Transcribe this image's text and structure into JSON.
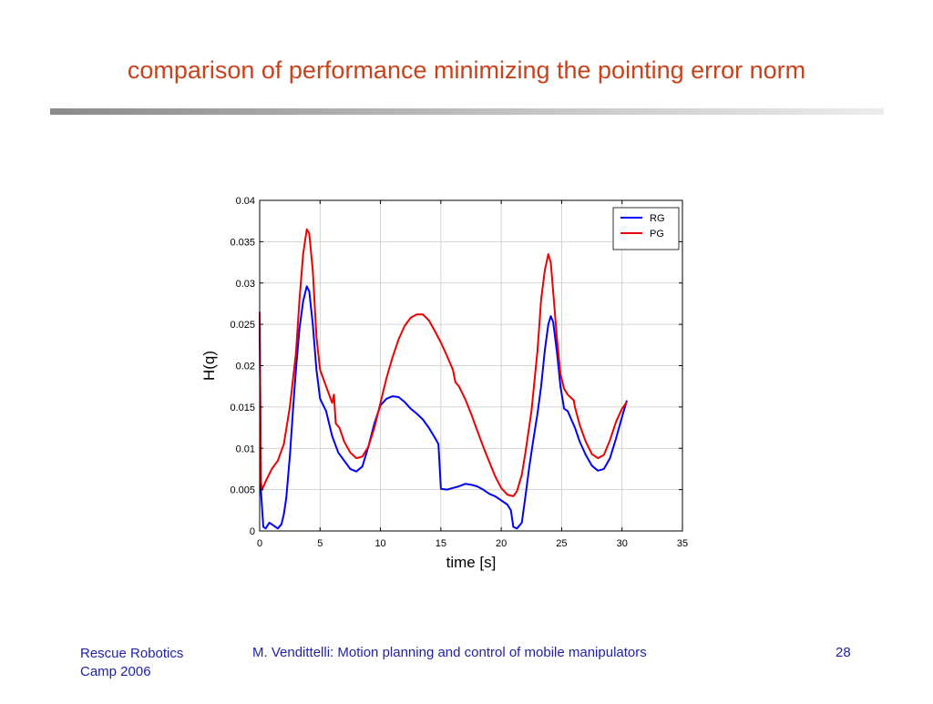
{
  "slide": {
    "title": "comparison of performance minimizing the pointing error norm",
    "footer_left": "Rescue Robotics Camp 2006",
    "footer_center": "M. Vendittelli: Motion planning and control of mobile manipulators",
    "page_number": "28",
    "title_color": "#c8421c",
    "footer_color": "#1f1fa8"
  },
  "chart_data": {
    "type": "line",
    "title": "",
    "xlabel": "time [s]",
    "ylabel": "H(q)",
    "xlim": [
      0,
      35
    ],
    "ylim": [
      0,
      0.04
    ],
    "xticks": [
      0,
      5,
      10,
      15,
      20,
      25,
      30,
      35
    ],
    "xtick_labels": [
      "0",
      "5",
      "10",
      "15",
      "20",
      "25",
      "30",
      "35"
    ],
    "yticks": [
      0,
      0.005,
      0.01,
      0.015,
      0.02,
      0.025,
      0.03,
      0.035,
      0.04
    ],
    "ytick_labels": [
      "0",
      "0.005",
      "0.01",
      "0.015",
      "0.02",
      "0.025",
      "0.03",
      "0.035",
      "0.04"
    ],
    "grid": true,
    "legend_position": "top-right",
    "series": [
      {
        "name": "RG",
        "color": "#0000ff",
        "x": [
          0,
          0.1,
          0.3,
          0.5,
          0.8,
          1.0,
          1.5,
          1.8,
          2.0,
          2.2,
          2.5,
          2.8,
          3.0,
          3.3,
          3.6,
          3.9,
          4.1,
          4.4,
          4.7,
          5.0,
          5.5,
          6.0,
          6.5,
          7.0,
          7.5,
          8.0,
          8.5,
          9.0,
          9.5,
          10.0,
          10.5,
          11.0,
          11.5,
          12.0,
          12.5,
          13.0,
          13.5,
          14.0,
          14.5,
          14.8,
          15.0,
          15.5,
          16.0,
          16.5,
          17.0,
          17.5,
          18.0,
          18.5,
          19.0,
          19.5,
          20.0,
          20.5,
          20.8,
          21.0,
          21.3,
          21.7,
          22.0,
          22.3,
          22.6,
          23.0,
          23.3,
          23.6,
          23.9,
          24.1,
          24.3,
          24.6,
          24.9,
          25.2,
          25.5,
          25.8,
          26.1,
          26.5,
          27.0,
          27.5,
          28.0,
          28.5,
          29.0,
          29.5,
          30.0,
          30.4
        ],
        "y": [
          0.026,
          0.005,
          0.0005,
          0.0003,
          0.001,
          0.0008,
          0.0003,
          0.0008,
          0.002,
          0.004,
          0.009,
          0.0155,
          0.0195,
          0.0245,
          0.0278,
          0.0296,
          0.029,
          0.025,
          0.0195,
          0.016,
          0.0145,
          0.0115,
          0.0095,
          0.0085,
          0.0075,
          0.0072,
          0.0078,
          0.0102,
          0.013,
          0.0152,
          0.016,
          0.0163,
          0.0162,
          0.0156,
          0.0148,
          0.0142,
          0.0135,
          0.0125,
          0.0113,
          0.0105,
          0.0051,
          0.005,
          0.0052,
          0.0054,
          0.0057,
          0.0056,
          0.0054,
          0.005,
          0.0045,
          0.0042,
          0.0037,
          0.0032,
          0.0025,
          0.0005,
          0.0003,
          0.001,
          0.0042,
          0.0075,
          0.0105,
          0.0142,
          0.0175,
          0.0218,
          0.025,
          0.026,
          0.0253,
          0.0218,
          0.0175,
          0.0148,
          0.0145,
          0.0135,
          0.0125,
          0.0108,
          0.0092,
          0.0079,
          0.0073,
          0.0075,
          0.0088,
          0.0112,
          0.0138,
          0.0158
        ]
      },
      {
        "name": "PG",
        "color": "#ee0000",
        "x": [
          0,
          0.1,
          0.2,
          0.5,
          1.0,
          1.5,
          2.0,
          2.5,
          3.0,
          3.3,
          3.6,
          3.9,
          4.1,
          4.4,
          4.7,
          5.0,
          5.5,
          6.0,
          6.15,
          6.3,
          6.6,
          7.0,
          7.5,
          8.0,
          8.5,
          9.0,
          9.5,
          10.0,
          10.5,
          11.0,
          11.5,
          12.0,
          12.5,
          13.0,
          13.5,
          14.0,
          14.5,
          15.0,
          15.5,
          16.0,
          16.2,
          16.5,
          17.0,
          17.5,
          18.0,
          18.5,
          19.0,
          19.5,
          20.0,
          20.5,
          21.0,
          21.3,
          21.7,
          22.0,
          22.5,
          23.0,
          23.3,
          23.6,
          23.9,
          24.1,
          24.3,
          24.6,
          24.9,
          25.2,
          25.5,
          26.0,
          26.1,
          26.5,
          27.0,
          27.5,
          28.0,
          28.5,
          29.0,
          29.5,
          30.0,
          30.4
        ],
        "y": [
          0.0265,
          0.006,
          0.005,
          0.006,
          0.0075,
          0.0085,
          0.0105,
          0.015,
          0.0215,
          0.028,
          0.0335,
          0.0365,
          0.036,
          0.0315,
          0.0235,
          0.0195,
          0.0175,
          0.0155,
          0.0165,
          0.013,
          0.0125,
          0.0108,
          0.0095,
          0.0088,
          0.009,
          0.0102,
          0.0125,
          0.0155,
          0.0185,
          0.021,
          0.0232,
          0.0248,
          0.0258,
          0.0262,
          0.0262,
          0.0255,
          0.0242,
          0.0228,
          0.0212,
          0.0195,
          0.018,
          0.0175,
          0.016,
          0.0142,
          0.0122,
          0.0102,
          0.0084,
          0.0066,
          0.0052,
          0.0044,
          0.0042,
          0.0048,
          0.0068,
          0.0095,
          0.0145,
          0.0218,
          0.028,
          0.0315,
          0.0335,
          0.0325,
          0.029,
          0.0235,
          0.019,
          0.0172,
          0.0165,
          0.0158,
          0.015,
          0.0128,
          0.0108,
          0.0093,
          0.0088,
          0.0092,
          0.011,
          0.0132,
          0.0148,
          0.0156
        ]
      }
    ]
  }
}
